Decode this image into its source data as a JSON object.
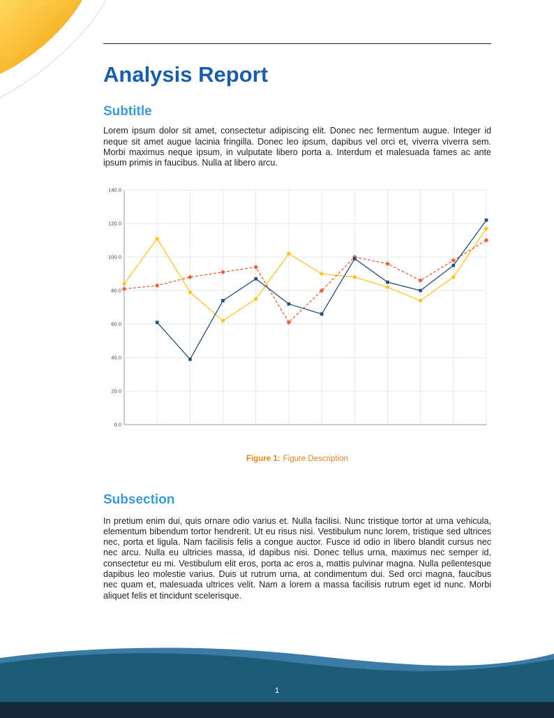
{
  "document": {
    "title": "Analysis Report",
    "page_number": "1"
  },
  "sections": [
    {
      "heading": "Subtitle",
      "body": "Lorem ipsum dolor sit amet, consectetur adipiscing elit. Donec nec fermentum augue. Integer id neque sit amet augue lacinia fringilla. Donec leo ipsum, dapibus vel orci et, viverra viverra sem. Morbi maximus neque ipsum, in vulputate libero porta a. Interdum et malesuada fames ac ante ipsum primis in faucibus. Nulla at libero arcu."
    },
    {
      "heading": "Subsection",
      "body": "In pretium enim dui, quis ornare odio varius et. Nulla facilisi. Nunc tristique tortor at urna vehicula, elementum bibendum tortor hendrerit. Ut eu risus nisi. Vestibulum nunc lorem, tristique sed ultrices nec, porta et ligula. Nam facilisis felis a congue auctor. Fusce id odio in libero blandit cursus nec nec arcu. Nulla eu ultricies massa, id dapibus nisi. Donec tellus urna, maximus nec semper id, consectetur eu mi. Vestibulum elit eros, porta ac eros a, mattis pulvinar magna. Nulla pellentesque dapibus leo molestie varius. Duis ut rutrum urna, at condimentum dui. Sed orci magna, faucibus nec quam et, malesuada ultrices velit. Nam a lorem a massa facilisis rutrum eget id nunc. Morbi aliquet felis et tincidunt scelerisque."
    }
  ],
  "figure": {
    "caption_label": "Figure 1:",
    "caption_text": "Figure Description",
    "chart_data": {
      "type": "line",
      "x": [
        1,
        2,
        3,
        4,
        5,
        6,
        7,
        8,
        9,
        10,
        11,
        12
      ],
      "ylim": [
        0,
        140
      ],
      "yticks": [
        "0.0",
        "20.0",
        "40.0",
        "60.0",
        "80.0",
        "100.0",
        "120.0",
        "140.0"
      ],
      "x_tick_labels": "none",
      "grid": true,
      "legend": "none",
      "series": [
        {
          "name": "series-yellow",
          "color": "#fdc32d",
          "marker": "diamond",
          "dash": null,
          "values": [
            84,
            111,
            79,
            62,
            75,
            102,
            90,
            88,
            82,
            74,
            88,
            117
          ]
        },
        {
          "name": "series-orange-dashed",
          "color": "#e9623e",
          "marker": "diamond",
          "dash": "4 2.5",
          "values": [
            81,
            83,
            88,
            91,
            94,
            61,
            80,
            100,
            96,
            86,
            98,
            110
          ]
        },
        {
          "name": "series-blue",
          "color": "#1f4e79",
          "marker": "square",
          "dash": null,
          "values": [
            null,
            61,
            39,
            74,
            87,
            72,
            66,
            99,
            85,
            80,
            95,
            122
          ]
        }
      ]
    }
  },
  "colors": {
    "title_color": "#1a5dab",
    "heading_color": "#3d9ad1",
    "caption_color": "#e08421",
    "body_color": "#1f1f1f",
    "rule_color": "#222222",
    "footer_wave": "#1d5b79",
    "footer_wave_light": "#3a7ca5",
    "footer_strip": "#15293f",
    "corner_yellow": "#ffd95e",
    "corner_orange": "#f29b06",
    "corner_arc": "#d8d8d8",
    "chart_grid": "#e6e6e6",
    "chart_axis": "#9a9a9a",
    "chart_label": "#444444"
  }
}
